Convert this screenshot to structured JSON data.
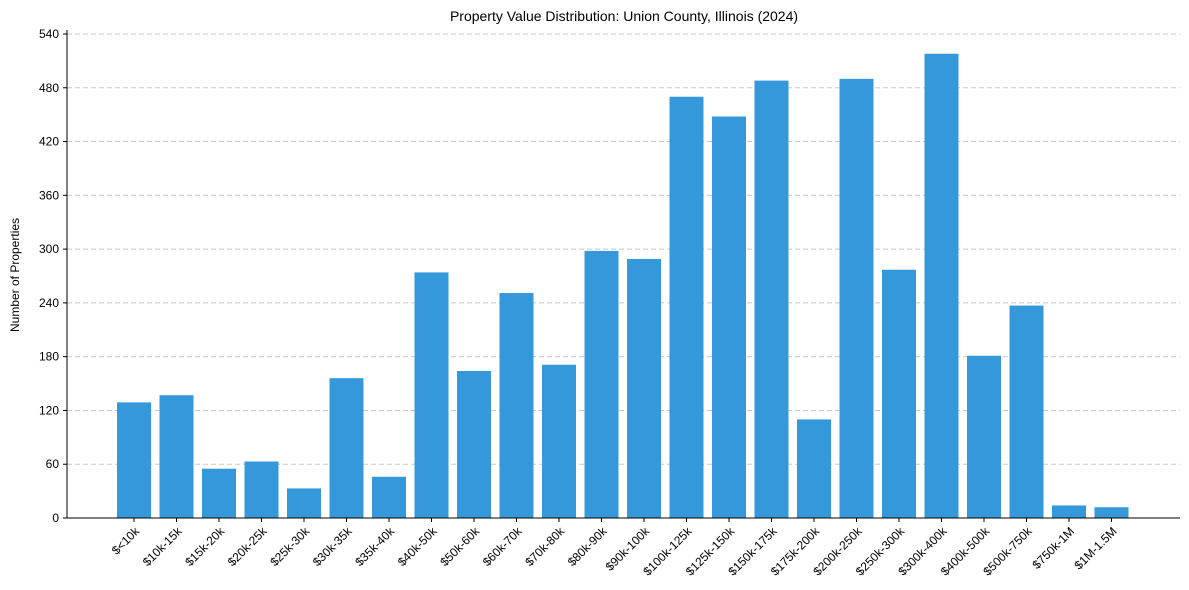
{
  "chart_data": {
    "type": "bar",
    "title": "Property Value Distribution: Union County, Illinois (2024)",
    "xlabel": "",
    "ylabel": "Number of Properties",
    "categories": [
      "$<10k",
      "$10k-15k",
      "$15k-20k",
      "$20k-25k",
      "$25k-30k",
      "$30k-35k",
      "$35k-40k",
      "$40k-50k",
      "$50k-60k",
      "$60k-70k",
      "$70k-80k",
      "$80k-90k",
      "$90k-100k",
      "$100k-125k",
      "$125k-150k",
      "$150k-175k",
      "$175k-200k",
      "$200k-250k",
      "$250k-300k",
      "$300k-400k",
      "$400k-500k",
      "$500k-750k",
      "$750k-1M",
      "$1M-1.5M"
    ],
    "values": [
      129,
      137,
      55,
      63,
      33,
      156,
      46,
      274,
      164,
      251,
      171,
      298,
      289,
      470,
      448,
      488,
      110,
      490,
      277,
      518,
      181,
      237,
      14,
      12
    ],
    "ylim": [
      0,
      540
    ],
    "yticks": [
      0,
      60,
      120,
      180,
      240,
      300,
      360,
      420,
      480,
      540
    ],
    "grid": true,
    "bar_color": "#3498db"
  }
}
